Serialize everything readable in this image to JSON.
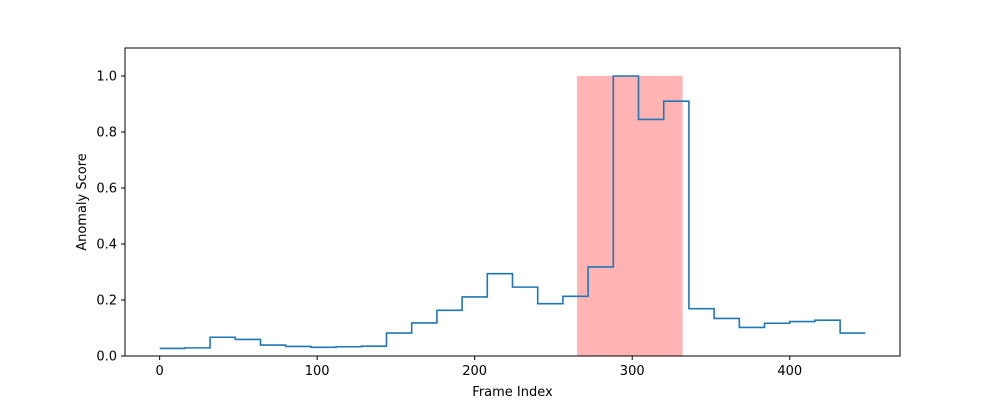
{
  "chart_data": {
    "type": "line",
    "title": "",
    "xlabel": "Frame Index",
    "ylabel": "Anomaly Score",
    "xlim": [
      -22,
      470
    ],
    "ylim": [
      0.0,
      1.1
    ],
    "x_ticks": [
      0,
      100,
      200,
      300,
      400
    ],
    "y_ticks": [
      0.0,
      0.2,
      0.4,
      0.6,
      0.8,
      1.0
    ],
    "x_tick_labels": [
      "0",
      "100",
      "200",
      "300",
      "400"
    ],
    "y_tick_labels": [
      "0.0",
      "0.2",
      "0.4",
      "0.6",
      "0.8",
      "1.0"
    ],
    "grid": false,
    "colors": {
      "line": "#1f77b4",
      "highlight": "#ffb3b3"
    },
    "highlight_region": {
      "x_start": 265,
      "x_end": 332,
      "y_top": 1.0
    },
    "series": [
      {
        "step": "post",
        "x": [
          0,
          16,
          32,
          48,
          64,
          80,
          96,
          112,
          128,
          144,
          160,
          176,
          192,
          208,
          224,
          240,
          256,
          272,
          288,
          304,
          320,
          336,
          352,
          368,
          384,
          400,
          416,
          432,
          448
        ],
        "values": [
          0.027,
          0.029,
          0.067,
          0.059,
          0.039,
          0.034,
          0.031,
          0.033,
          0.035,
          0.082,
          0.118,
          0.163,
          0.211,
          0.294,
          0.246,
          0.187,
          0.213,
          0.318,
          1.0,
          0.845,
          0.91,
          0.169,
          0.134,
          0.102,
          0.117,
          0.123,
          0.128,
          0.082,
          0.082
        ]
      }
    ]
  }
}
